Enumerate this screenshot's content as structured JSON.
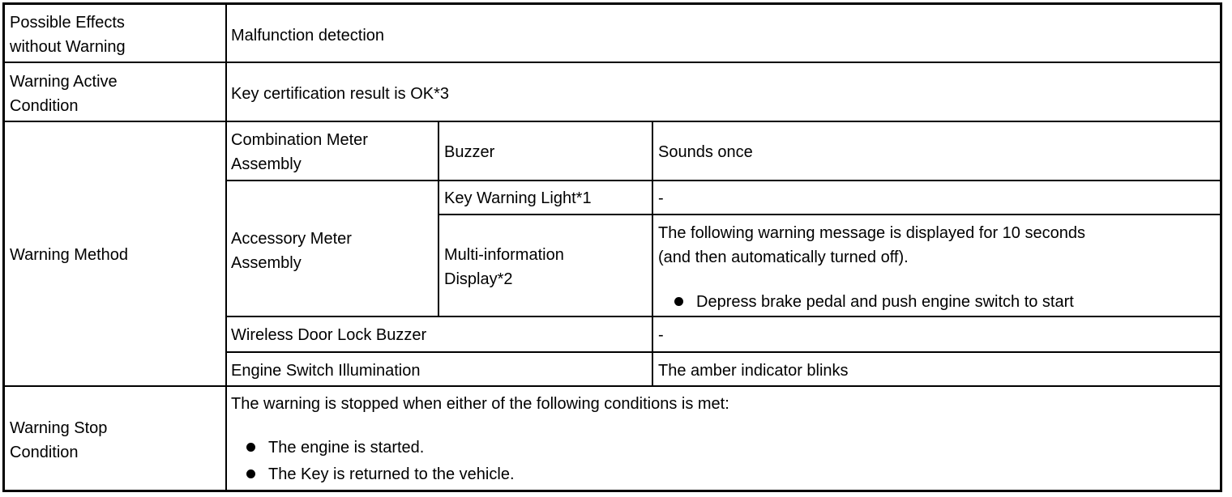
{
  "rows": {
    "possible_effects": {
      "label_1": "Possible Effects",
      "label_2": "without Warning",
      "value": "Malfunction detection"
    },
    "active_condition": {
      "label_1": "Warning Active",
      "label_2": "Condition",
      "value": "Key certification result is OK*3"
    },
    "warning_method": {
      "label": "Warning Method",
      "combination_meter": {
        "label_1": "Combination Meter",
        "label_2": "Assembly",
        "item": "Buzzer",
        "value": "Sounds once"
      },
      "accessory_meter": {
        "label_1": "Accessory Meter",
        "label_2": "Assembly",
        "key_light": {
          "item": "Key Warning Light*1",
          "value": "-"
        },
        "mid": {
          "item_1": "Multi-information",
          "item_2": "Display*2",
          "value_1": "The following warning message is displayed for 10 seconds",
          "value_2": "(and then automatically turned off).",
          "bullet": "Depress brake pedal and push engine switch to start"
        }
      },
      "door_buzzer": {
        "label": "Wireless Door Lock Buzzer",
        "value": "-"
      },
      "illumination": {
        "label": "Engine Switch Illumination",
        "value": "The amber indicator blinks"
      }
    },
    "stop_condition": {
      "label_1": "Warning Stop",
      "label_2": "Condition",
      "intro": "The warning is stopped when either of the following conditions is met:",
      "bullets": [
        "The engine is started.",
        "The Key is returned to the vehicle."
      ]
    }
  }
}
